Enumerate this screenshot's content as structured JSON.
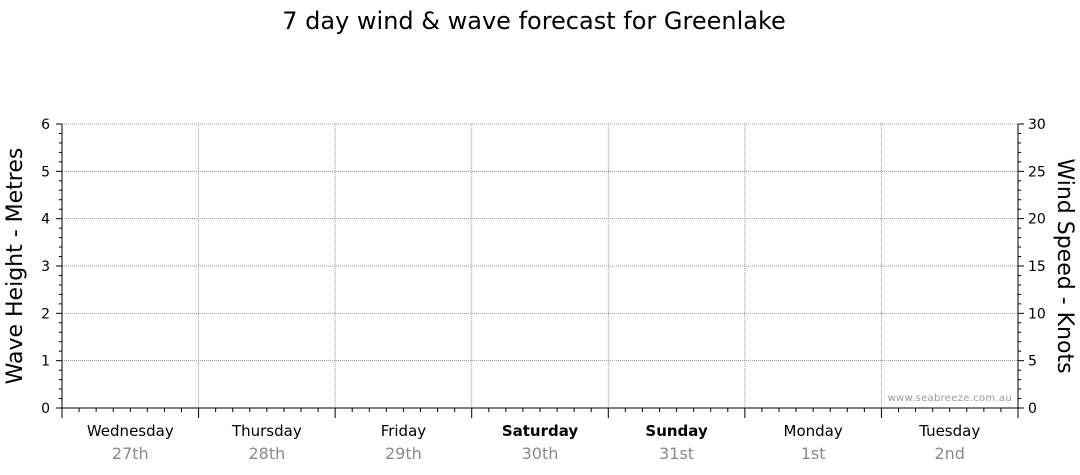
{
  "chart_data": {
    "type": "line",
    "title": "7 day wind & wave forecast for Greenlake",
    "ylabel_left": "Wave Height - Metres",
    "ylabel_right": "Wind Speed - Knots",
    "ylim_left": [
      0,
      6
    ],
    "ylim_right": [
      0,
      30
    ],
    "yticks_left": [
      "0",
      "1",
      "2",
      "3",
      "4",
      "5",
      "6"
    ],
    "yticks_right": [
      "0",
      "5",
      "10",
      "15",
      "20",
      "25",
      "30"
    ],
    "categories": [
      {
        "day": "Wednesday",
        "date": "27th",
        "weekend": false
      },
      {
        "day": "Thursday",
        "date": "28th",
        "weekend": false
      },
      {
        "day": "Friday",
        "date": "29th",
        "weekend": false
      },
      {
        "day": "Saturday",
        "date": "30th",
        "weekend": true
      },
      {
        "day": "Sunday",
        "date": "31st",
        "weekend": true
      },
      {
        "day": "Monday",
        "date": "1st",
        "weekend": false
      },
      {
        "day": "Tuesday",
        "date": "2nd",
        "weekend": false
      }
    ],
    "series": [],
    "grid": true,
    "watermark": "www.seabreeze.com.au"
  }
}
